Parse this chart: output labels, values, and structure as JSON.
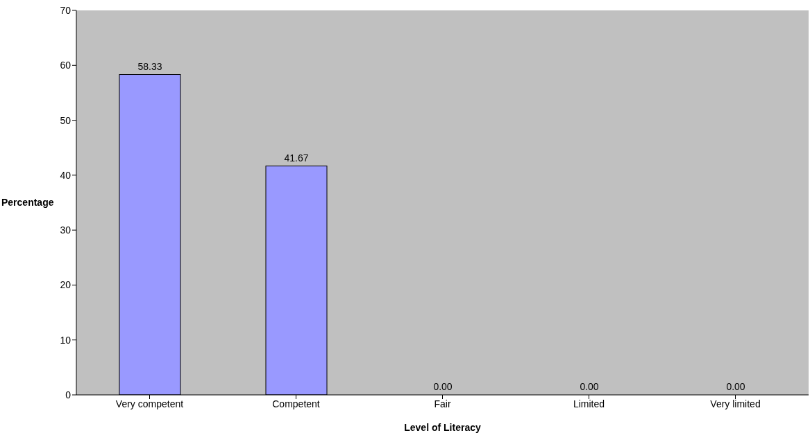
{
  "chart_data": {
    "type": "bar",
    "xlabel": "Level of Literacy",
    "ylabel": "Percentage",
    "categories": [
      "Very competent",
      "Competent",
      "Fair",
      "Limited",
      "Very limited"
    ],
    "values": [
      58.33,
      41.67,
      0,
      0,
      0
    ],
    "value_labels": [
      "58.33",
      "41.67",
      "0.00",
      "0.00",
      "0.00"
    ],
    "color": "#9999ff",
    "ylim": [
      0,
      70
    ],
    "yticks": [
      0,
      10,
      20,
      30,
      40,
      50,
      60,
      70
    ],
    "grid": false
  }
}
